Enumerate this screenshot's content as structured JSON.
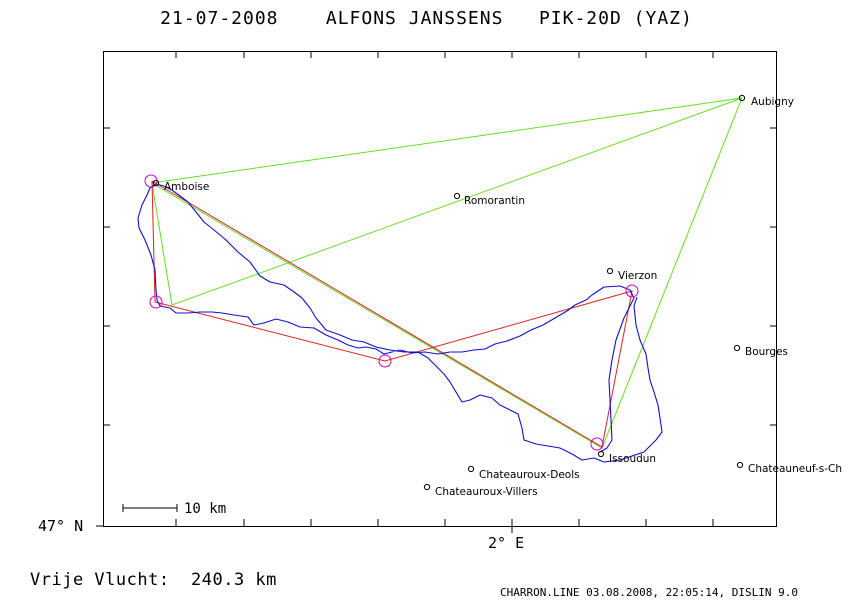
{
  "title": {
    "date": "21-07-2008",
    "pilot": "ALFONS JANSSENS",
    "glider": "PIK-20D (YAZ)"
  },
  "axes": {
    "lat_label": "47° N",
    "lon_label": "2° E"
  },
  "scale_bar": {
    "label": "10 km"
  },
  "towns": [
    {
      "name": "Aubigny"
    },
    {
      "name": "Amboise"
    },
    {
      "name": "Romorantin"
    },
    {
      "name": "Vierzon"
    },
    {
      "name": "Bourges"
    },
    {
      "name": "Issoudun"
    },
    {
      "name": "Chateauroux-Deols"
    },
    {
      "name": "Chateauroux-Villers"
    },
    {
      "name": "Chateauneuf-s-Ch"
    }
  ],
  "colors": {
    "track": "#1010d0",
    "task_declared": "#66dd22",
    "task_flown": "#dd2222",
    "turnpoint": "#cc00cc",
    "frame": "#000000"
  },
  "footer": {
    "distance": "Vrije Vlucht:  240.3 km",
    "software": "CHARRON.LINE 03.08.2008, 22:05:14, DISLIN 9.0"
  }
}
